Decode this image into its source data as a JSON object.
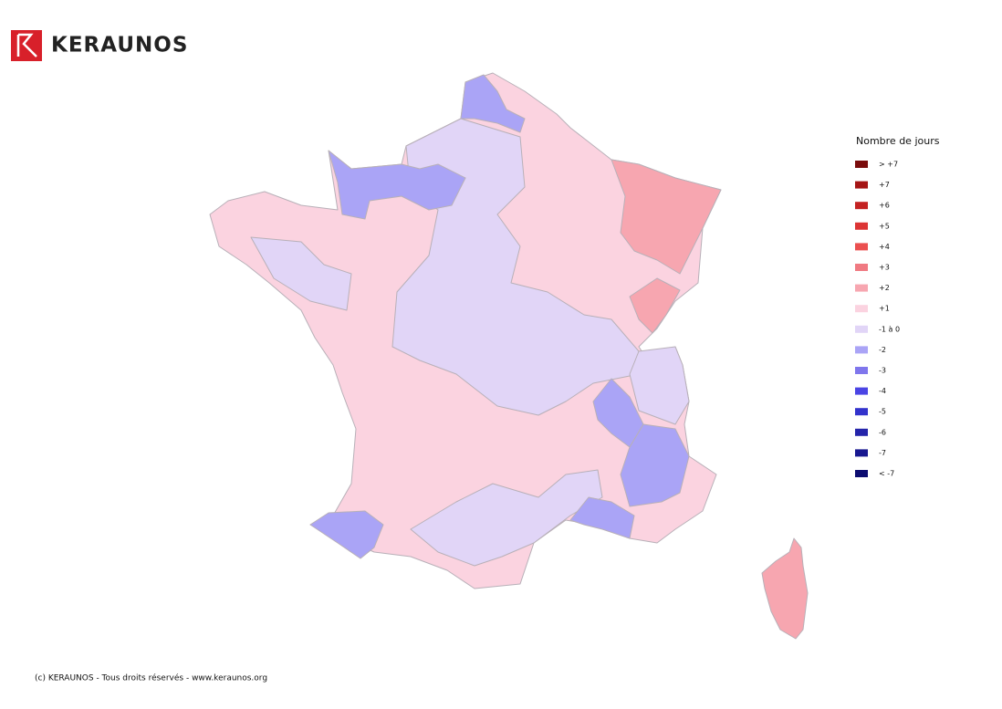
{
  "brand": "KERAUNOS",
  "legend": {
    "title": "Nombre de jours",
    "items": [
      {
        "label": "> +7",
        "color": "#7a0c0c"
      },
      {
        "label": "+7",
        "color": "#a51515"
      },
      {
        "label": "+6",
        "color": "#c42222"
      },
      {
        "label": "+5",
        "color": "#dc3434"
      },
      {
        "label": "+4",
        "color": "#eb5050"
      },
      {
        "label": "+3",
        "color": "#f07a82"
      },
      {
        "label": "+2",
        "color": "#f7a6b0"
      },
      {
        "label": "+1",
        "color": "#fbd3e0"
      },
      {
        "label": "-1 à 0",
        "color": "#e1d5f7"
      },
      {
        "label": "-2",
        "color": "#aaa4f6"
      },
      {
        "label": "-3",
        "color": "#7f76ec"
      },
      {
        "label": "-4",
        "color": "#4a44e4"
      },
      {
        "label": "-5",
        "color": "#3232cc"
      },
      {
        "label": "-6",
        "color": "#2424aa"
      },
      {
        "label": "-7",
        "color": "#181890"
      },
      {
        "label": "< -7",
        "color": "#0c0c70"
      }
    ]
  },
  "footer": "(c) KERAUNOS - Tous droits réservés - www.keraunos.org"
}
